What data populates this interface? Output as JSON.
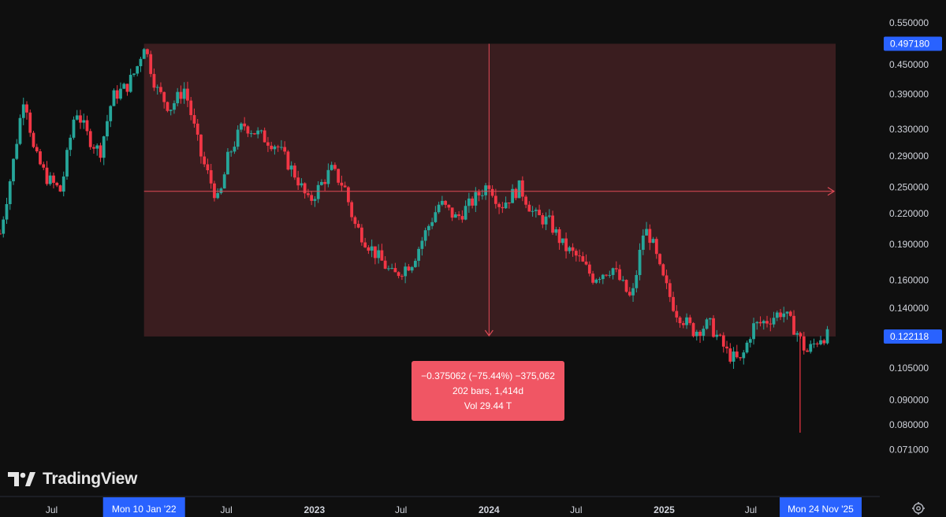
{
  "brand": {
    "logo_text": "TradingView"
  },
  "measure_tool": {
    "line1": "−0.375062 (−75.44%) −375,062",
    "line2": "202 bars, 1,414d",
    "line3": "Vol 29.44 T",
    "start_price": 0.49718,
    "end_price": 0.122118
  },
  "colors": {
    "background": "#0f0f0f",
    "up": "#26a69a",
    "down": "#f23645",
    "measure_fill": "#3a1d1f",
    "measure_line": "#e04b57",
    "price_tag": "#2962ff"
  },
  "settings_icon": "gear-icon",
  "chart_data": {
    "type": "candlestick",
    "y_scale": "log",
    "ylim": [
      0.068,
      0.58
    ],
    "price_ticks": [
      "0.550000",
      "0.450000",
      "0.390000",
      "0.330000",
      "0.290000",
      "0.250000",
      "0.220000",
      "0.190000",
      "0.160000",
      "0.140000",
      "0.105000",
      "0.090000",
      "0.080000",
      "0.071000"
    ],
    "price_tags": [
      {
        "label": "0.497180",
        "value": 0.49718
      },
      {
        "label": "0.122118",
        "value": 0.122118
      }
    ],
    "time_labels": [
      {
        "label": "Jul",
        "date": "2021-07-01"
      },
      {
        "label": "Jul",
        "date": "2022-07-01"
      },
      {
        "label": "2023",
        "date": "2023-01-01"
      },
      {
        "label": "Jul",
        "date": "2023-07-01"
      },
      {
        "label": "2024",
        "date": "2024-01-01"
      },
      {
        "label": "Jul",
        "date": "2024-07-01"
      },
      {
        "label": "2025",
        "date": "2025-01-01"
      },
      {
        "label": "Jul",
        "date": "2025-07-01"
      }
    ],
    "time_tags": [
      {
        "label": "Mon 10 Jan '22",
        "date": "2022-01-10"
      },
      {
        "label": "Mon 24 Nov '25",
        "date": "2025-11-24"
      }
    ],
    "x_range": [
      "2021-03-15",
      "2026-01-19"
    ],
    "crosshair": {
      "date": "2024-01-01",
      "price": 0.245
    },
    "measure_range": {
      "start_date": "2022-01-10",
      "end_date": "2025-11-24",
      "high": 0.49718,
      "low": 0.122118
    },
    "weekly_close_path": [
      [
        "2021-03-15",
        0.2
      ],
      [
        "2021-04-10",
        0.275
      ],
      [
        "2021-05-05",
        0.395
      ],
      [
        "2021-05-25",
        0.295
      ],
      [
        "2021-06-20",
        0.262
      ],
      [
        "2021-07-20",
        0.245
      ],
      [
        "2021-08-20",
        0.365
      ],
      [
        "2021-09-15",
        0.318
      ],
      [
        "2021-10-10",
        0.295
      ],
      [
        "2021-11-05",
        0.385
      ],
      [
        "2021-12-05",
        0.405
      ],
      [
        "2021-12-25",
        0.44
      ],
      [
        "2022-01-10",
        0.497
      ],
      [
        "2022-02-05",
        0.4
      ],
      [
        "2022-03-05",
        0.365
      ],
      [
        "2022-04-05",
        0.402
      ],
      [
        "2022-05-10",
        0.288
      ],
      [
        "2022-06-15",
        0.232
      ],
      [
        "2022-07-05",
        0.29
      ],
      [
        "2022-08-05",
        0.338
      ],
      [
        "2022-09-10",
        0.32
      ],
      [
        "2022-10-15",
        0.305
      ],
      [
        "2022-11-25",
        0.262
      ],
      [
        "2022-12-20",
        0.232
      ],
      [
        "2023-02-05",
        0.272
      ],
      [
        "2023-03-05",
        0.25
      ],
      [
        "2023-03-25",
        0.21
      ],
      [
        "2023-04-20",
        0.192
      ],
      [
        "2023-06-15",
        0.163
      ],
      [
        "2023-07-25",
        0.175
      ],
      [
        "2023-08-25",
        0.205
      ],
      [
        "2023-09-20",
        0.232
      ],
      [
        "2023-10-25",
        0.215
      ],
      [
        "2023-11-25",
        0.232
      ],
      [
        "2024-01-01",
        0.255
      ],
      [
        "2024-01-25",
        0.228
      ],
      [
        "2024-03-05",
        0.25
      ],
      [
        "2024-04-05",
        0.218
      ],
      [
        "2024-05-05",
        0.212
      ],
      [
        "2024-06-05",
        0.188
      ],
      [
        "2024-07-05",
        0.178
      ],
      [
        "2024-08-05",
        0.162
      ],
      [
        "2024-09-15",
        0.17
      ],
      [
        "2024-10-25",
        0.145
      ],
      [
        "2024-11-20",
        0.205
      ],
      [
        "2024-12-05",
        0.195
      ],
      [
        "2024-12-25",
        0.165
      ],
      [
        "2025-01-25",
        0.138
      ],
      [
        "2025-03-05",
        0.125
      ],
      [
        "2025-04-05",
        0.13
      ],
      [
        "2025-05-15",
        0.112
      ],
      [
        "2025-06-10",
        0.108
      ],
      [
        "2025-07-05",
        0.128
      ],
      [
        "2025-08-05",
        0.132
      ],
      [
        "2025-09-05",
        0.138
      ],
      [
        "2025-10-05",
        0.125
      ],
      [
        "2025-10-25",
        0.113
      ],
      [
        "2025-11-24",
        0.122
      ],
      [
        "2026-01-19",
        0.124
      ]
    ]
  }
}
